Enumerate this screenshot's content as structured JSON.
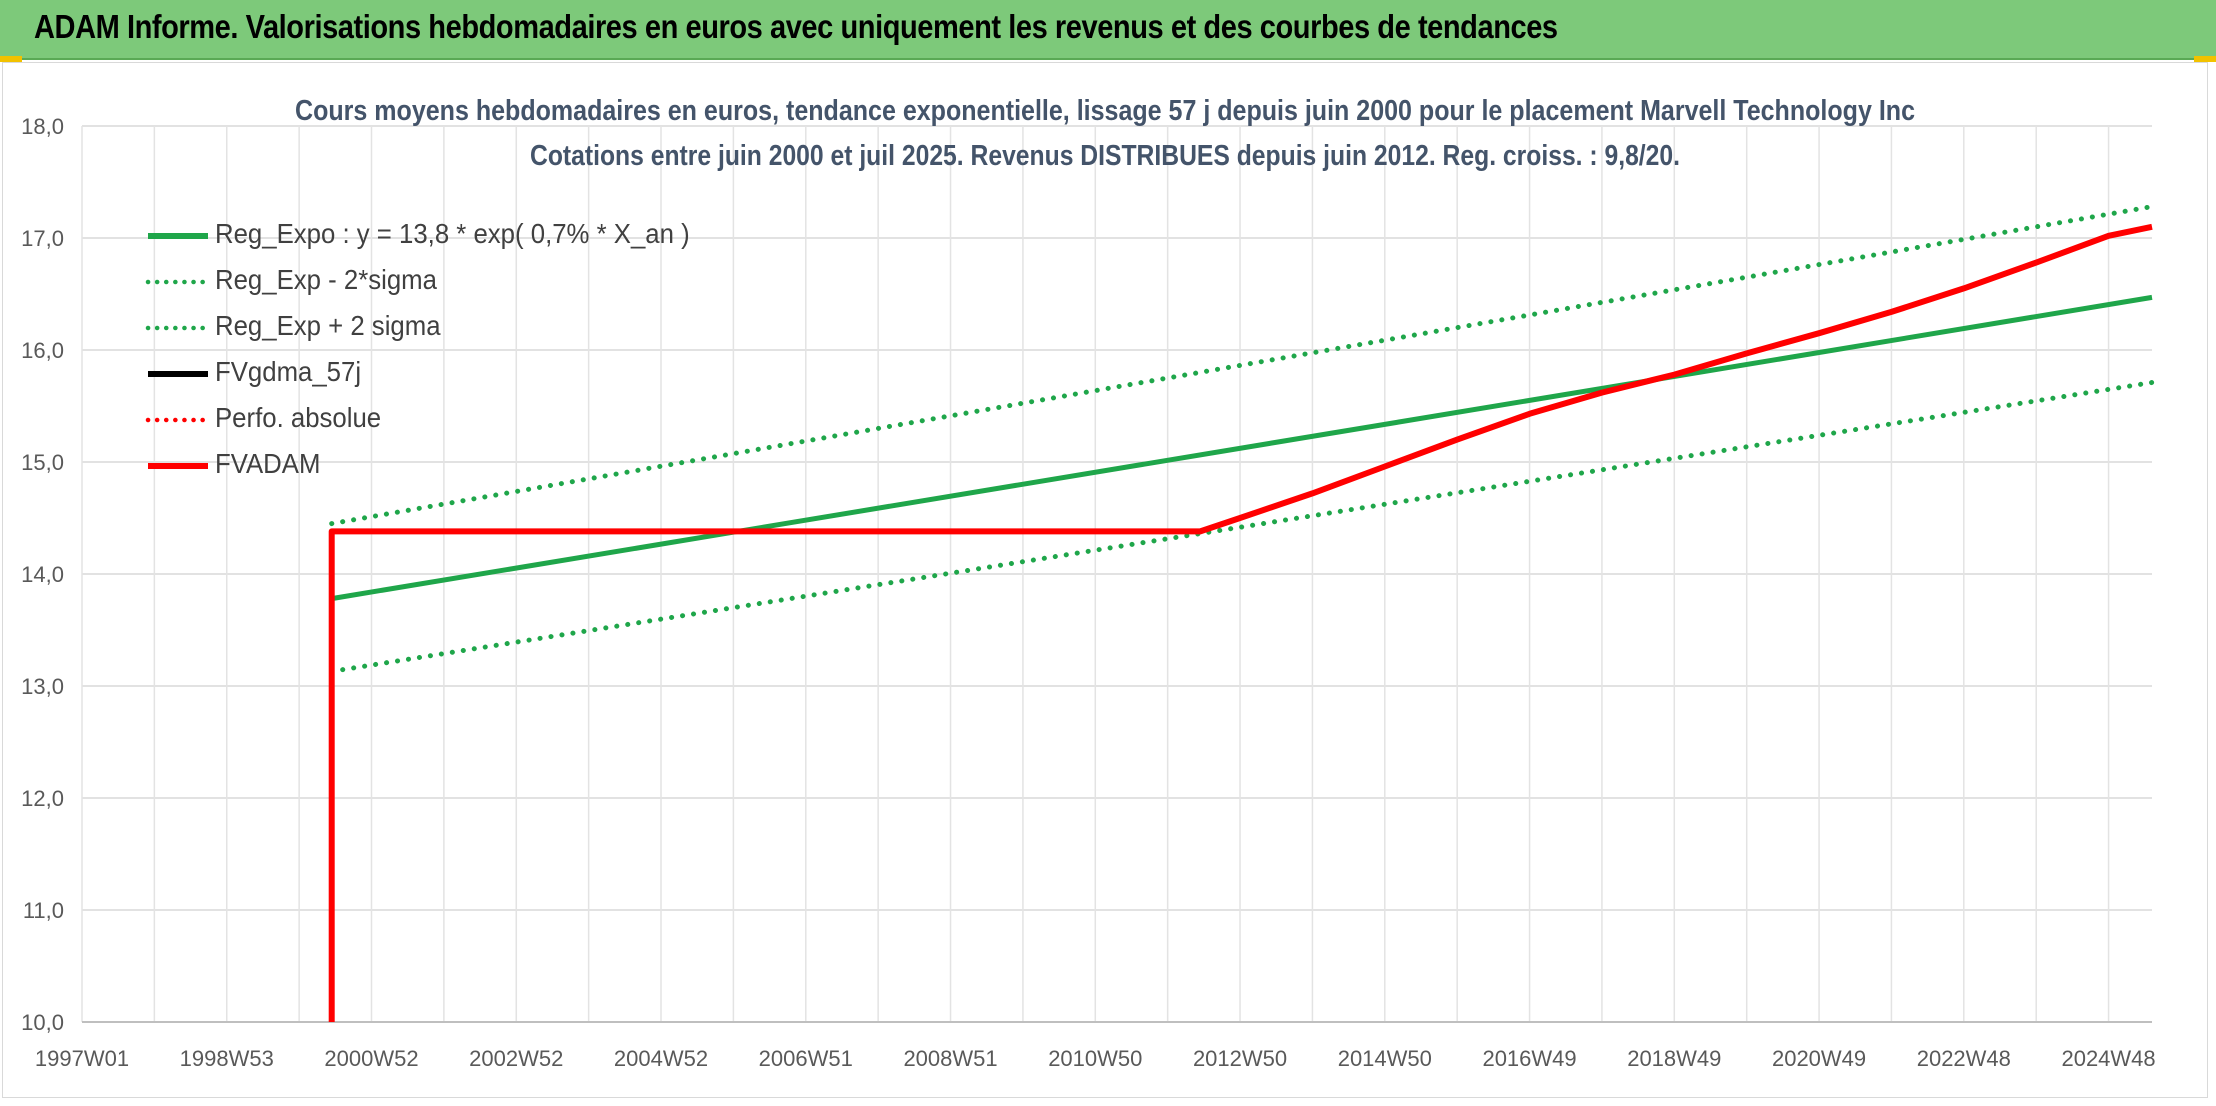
{
  "banner": {
    "title": "ADAM Informe. Valorisations hebdomadaires en euros avec uniquement les revenus et des courbes de tendances",
    "color": "#7dc97a"
  },
  "chart_data": {
    "type": "line",
    "title": "Cours moyens hebdomadaires en euros, tendance exponentielle, lissage 57 j depuis juin 2000 pour le placement Marvell Technology Inc",
    "subtitle": "Cotations entre juin 2000 et juil 2025. Revenus DISTRIBUES depuis juin 2012. Reg. croiss. : 9,8/20.",
    "xlabel": "",
    "ylabel": "",
    "ylim": [
      10,
      18
    ],
    "yticks": [
      "10,0",
      "11,0",
      "12,0",
      "13,0",
      "14,0",
      "15,0",
      "16,0",
      "17,0",
      "18,0"
    ],
    "xlim": [
      1997.0,
      2025.6
    ],
    "xticks": [
      {
        "label": "1997W01",
        "t": 1997.0
      },
      {
        "label": "1998W53",
        "t": 1999.0
      },
      {
        "label": "2000W52",
        "t": 2001.0
      },
      {
        "label": "2002W52",
        "t": 2003.0
      },
      {
        "label": "2004W52",
        "t": 2005.0
      },
      {
        "label": "2006W51",
        "t": 2007.0
      },
      {
        "label": "2008W51",
        "t": 2009.0
      },
      {
        "label": "2010W50",
        "t": 2011.0
      },
      {
        "label": "2012W50",
        "t": 2013.0
      },
      {
        "label": "2014W50",
        "t": 2015.0
      },
      {
        "label": "2016W49",
        "t": 2017.0
      },
      {
        "label": "2018W49",
        "t": 2019.0
      },
      {
        "label": "2020W49",
        "t": 2021.0
      },
      {
        "label": "2022W48",
        "t": 2023.0
      },
      {
        "label": "2024W48",
        "t": 2025.0
      }
    ],
    "grid": true,
    "legend_position": "top-left",
    "series": [
      {
        "name": "Reg_Expo : y = 13,8 * exp( 0,7% *  X_an )",
        "color": "#1fa64a",
        "style": "solid",
        "points": [
          [
            2000.45,
            13.78
          ],
          [
            2025.6,
            16.47
          ]
        ]
      },
      {
        "name": "Reg_Exp - 2*sigma",
        "color": "#1fa64a",
        "style": "dotted",
        "points": [
          [
            2000.45,
            13.13
          ],
          [
            2025.6,
            15.71
          ]
        ]
      },
      {
        "name": "Reg_Exp + 2 sigma",
        "color": "#1fa64a",
        "style": "dotted",
        "points": [
          [
            2000.45,
            14.45
          ],
          [
            2025.6,
            17.28
          ]
        ]
      },
      {
        "name": "FVgdma_57j",
        "color": "#000000",
        "style": "solid",
        "points": []
      },
      {
        "name": "Perfo. absolue",
        "color": "#ff0000",
        "style": "dotted",
        "points": []
      },
      {
        "name": "FVADAM",
        "color": "#ff0000",
        "style": "solid",
        "points": [
          [
            2000.45,
            10.0
          ],
          [
            2000.45,
            14.38
          ],
          [
            2012.45,
            14.38
          ],
          [
            2013.0,
            14.5
          ],
          [
            2014.0,
            14.72
          ],
          [
            2015.0,
            14.96
          ],
          [
            2016.0,
            15.2
          ],
          [
            2017.0,
            15.43
          ],
          [
            2018.0,
            15.62
          ],
          [
            2019.0,
            15.78
          ],
          [
            2020.0,
            15.97
          ],
          [
            2021.0,
            16.15
          ],
          [
            2022.0,
            16.34
          ],
          [
            2023.0,
            16.55
          ],
          [
            2024.0,
            16.78
          ],
          [
            2025.0,
            17.02
          ],
          [
            2025.6,
            17.1
          ]
        ]
      }
    ]
  }
}
